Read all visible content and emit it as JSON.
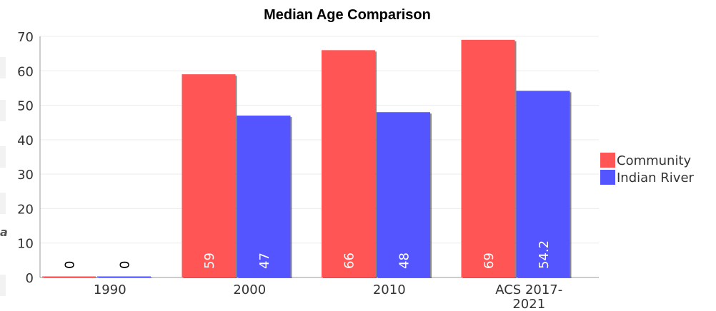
{
  "chart_data": {
    "type": "bar",
    "title": "Median Age Comparison",
    "xlabel": "",
    "ylabel": "",
    "categories": [
      "1990",
      "2000",
      "2010",
      "ACS 2017-2021"
    ],
    "category_labels": [
      [
        "1990"
      ],
      [
        "2000"
      ],
      [
        "2010"
      ],
      [
        "ACS 2017-",
        "2021"
      ]
    ],
    "series": [
      {
        "name": "Community",
        "values": [
          0,
          59,
          66,
          69
        ],
        "labels": [
          "0",
          "59",
          "66",
          "69"
        ]
      },
      {
        "name": "Indian River",
        "values": [
          0,
          47,
          48,
          54.2
        ],
        "labels": [
          "0",
          "47",
          "48",
          "54.2"
        ]
      }
    ],
    "ylim": [
      0,
      70
    ],
    "yticks": [
      0,
      10,
      20,
      30,
      40,
      50,
      60,
      70
    ],
    "grid": true,
    "legend_position": "right",
    "colors": {
      "Community": "#ff5555",
      "Indian River": "#5555ff"
    }
  },
  "page": {
    "left_mark": "a"
  }
}
